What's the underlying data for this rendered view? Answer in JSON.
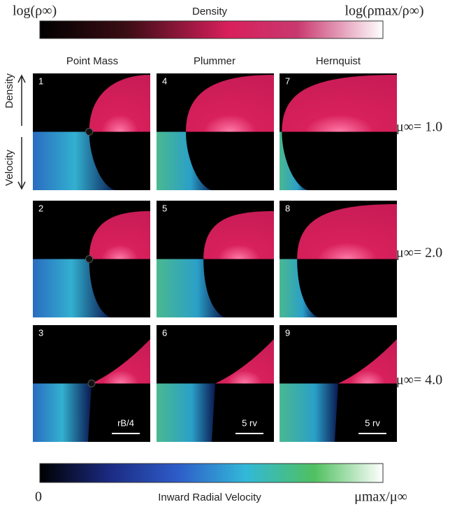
{
  "header": {
    "left": "log(ρ∞)",
    "title": "Density",
    "right": "log(ρmax/ρ∞)"
  },
  "columns": [
    "Point Mass",
    "Plummer",
    "Hernquist"
  ],
  "side": {
    "top": "Density",
    "bottom": "Velocity"
  },
  "rows": [
    "μ∞= 1.0",
    "μ∞= 2.0",
    "μ∞= 4.0"
  ],
  "panels": [
    "1",
    "4",
    "7",
    "2",
    "5",
    "8",
    "3",
    "6",
    "9"
  ],
  "scale_bars": [
    "rB/4",
    "5 rv",
    "5 rv"
  ],
  "footer": {
    "left": "0",
    "title": "Inward Radial Velocity",
    "right": "μmax/μ∞"
  }
}
